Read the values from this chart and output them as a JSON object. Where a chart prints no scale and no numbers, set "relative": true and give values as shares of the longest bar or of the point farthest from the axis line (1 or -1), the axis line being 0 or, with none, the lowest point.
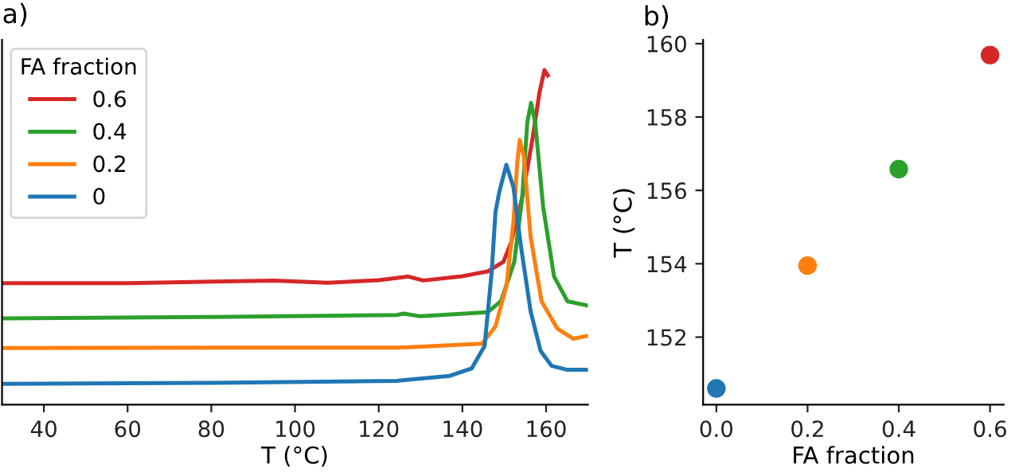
{
  "chart_data": [
    {
      "type": "line",
      "title": "a)",
      "xlabel": "T (°C)",
      "legend_title": "FA fraction",
      "legend": "top left",
      "relative": true,
      "tick_labels": "x",
      "xlim": [
        30,
        170
      ],
      "xticks": [
        40,
        60,
        80,
        100,
        120,
        140,
        160
      ],
      "series": [
        {
          "name": "0.6",
          "color": "#d62728",
          "x": [
            30,
            60,
            95,
            107.8,
            120,
            127,
            130.7,
            139.6,
            146,
            149.8,
            151.7,
            154.3,
            156.8,
            158.4,
            159.6,
            160.4
          ],
          "values": [
            0.363,
            0.363,
            0.371,
            0.364,
            0.372,
            0.383,
            0.371,
            0.383,
            0.398,
            0.427,
            0.487,
            0.62,
            0.798,
            0.932,
            1.0,
            0.984
          ]
        },
        {
          "name": "0.4",
          "color": "#2ca02c",
          "x": [
            30,
            80,
            124.3,
            126,
            130,
            146,
            149.2,
            152.4,
            154.3,
            155.5,
            156.4,
            157.4,
            159.3,
            161.9,
            165.1,
            169.6
          ],
          "values": [
            0.258,
            0.262,
            0.268,
            0.272,
            0.264,
            0.276,
            0.309,
            0.427,
            0.62,
            0.843,
            0.902,
            0.843,
            0.59,
            0.383,
            0.309,
            0.297
          ]
        },
        {
          "name": "0.2",
          "color": "#ff7f0e",
          "x": [
            30,
            80,
            124.3,
            144.7,
            147.9,
            150.5,
            152.2,
            153.1,
            153.7,
            154.7,
            156.3,
            158.9,
            162.7,
            166.5,
            169.6
          ],
          "values": [
            0.169,
            0.17,
            0.17,
            0.182,
            0.234,
            0.353,
            0.546,
            0.724,
            0.791,
            0.739,
            0.501,
            0.309,
            0.227,
            0.197,
            0.205
          ]
        },
        {
          "name": "0",
          "color": "#1f77b4",
          "x": [
            30,
            80,
            124.3,
            137,
            142.2,
            145.3,
            147,
            147.9,
            148.8,
            150.5,
            152.2,
            154,
            156.3,
            158.7,
            161.3,
            165.1,
            169.6
          ],
          "values": [
            0.062,
            0.065,
            0.071,
            0.086,
            0.108,
            0.175,
            0.397,
            0.575,
            0.635,
            0.717,
            0.65,
            0.472,
            0.279,
            0.16,
            0.116,
            0.104,
            0.104
          ]
        }
      ]
    },
    {
      "type": "scatter",
      "title": "b)",
      "xlabel": "FA fraction",
      "ylabel": "T (°C)",
      "marker": "circle",
      "xlim": [
        -0.029,
        0.63
      ],
      "ylim": [
        150.16,
        160.1
      ],
      "xticks": [
        {
          "value": 0,
          "label": "0.0"
        },
        {
          "value": 0.2,
          "label": "0.2"
        },
        {
          "value": 0.4,
          "label": "0.4"
        },
        {
          "value": 0.6,
          "label": "0.6"
        }
      ],
      "yticks": [
        152,
        154,
        156,
        158,
        160
      ],
      "x": [
        0,
        0.2,
        0.4,
        0.6
      ],
      "values": [
        150.6,
        153.95,
        156.58,
        159.69
      ],
      "colors": [
        "#1f77b4",
        "#ff7f0e",
        "#2ca02c",
        "#d62728"
      ]
    }
  ]
}
